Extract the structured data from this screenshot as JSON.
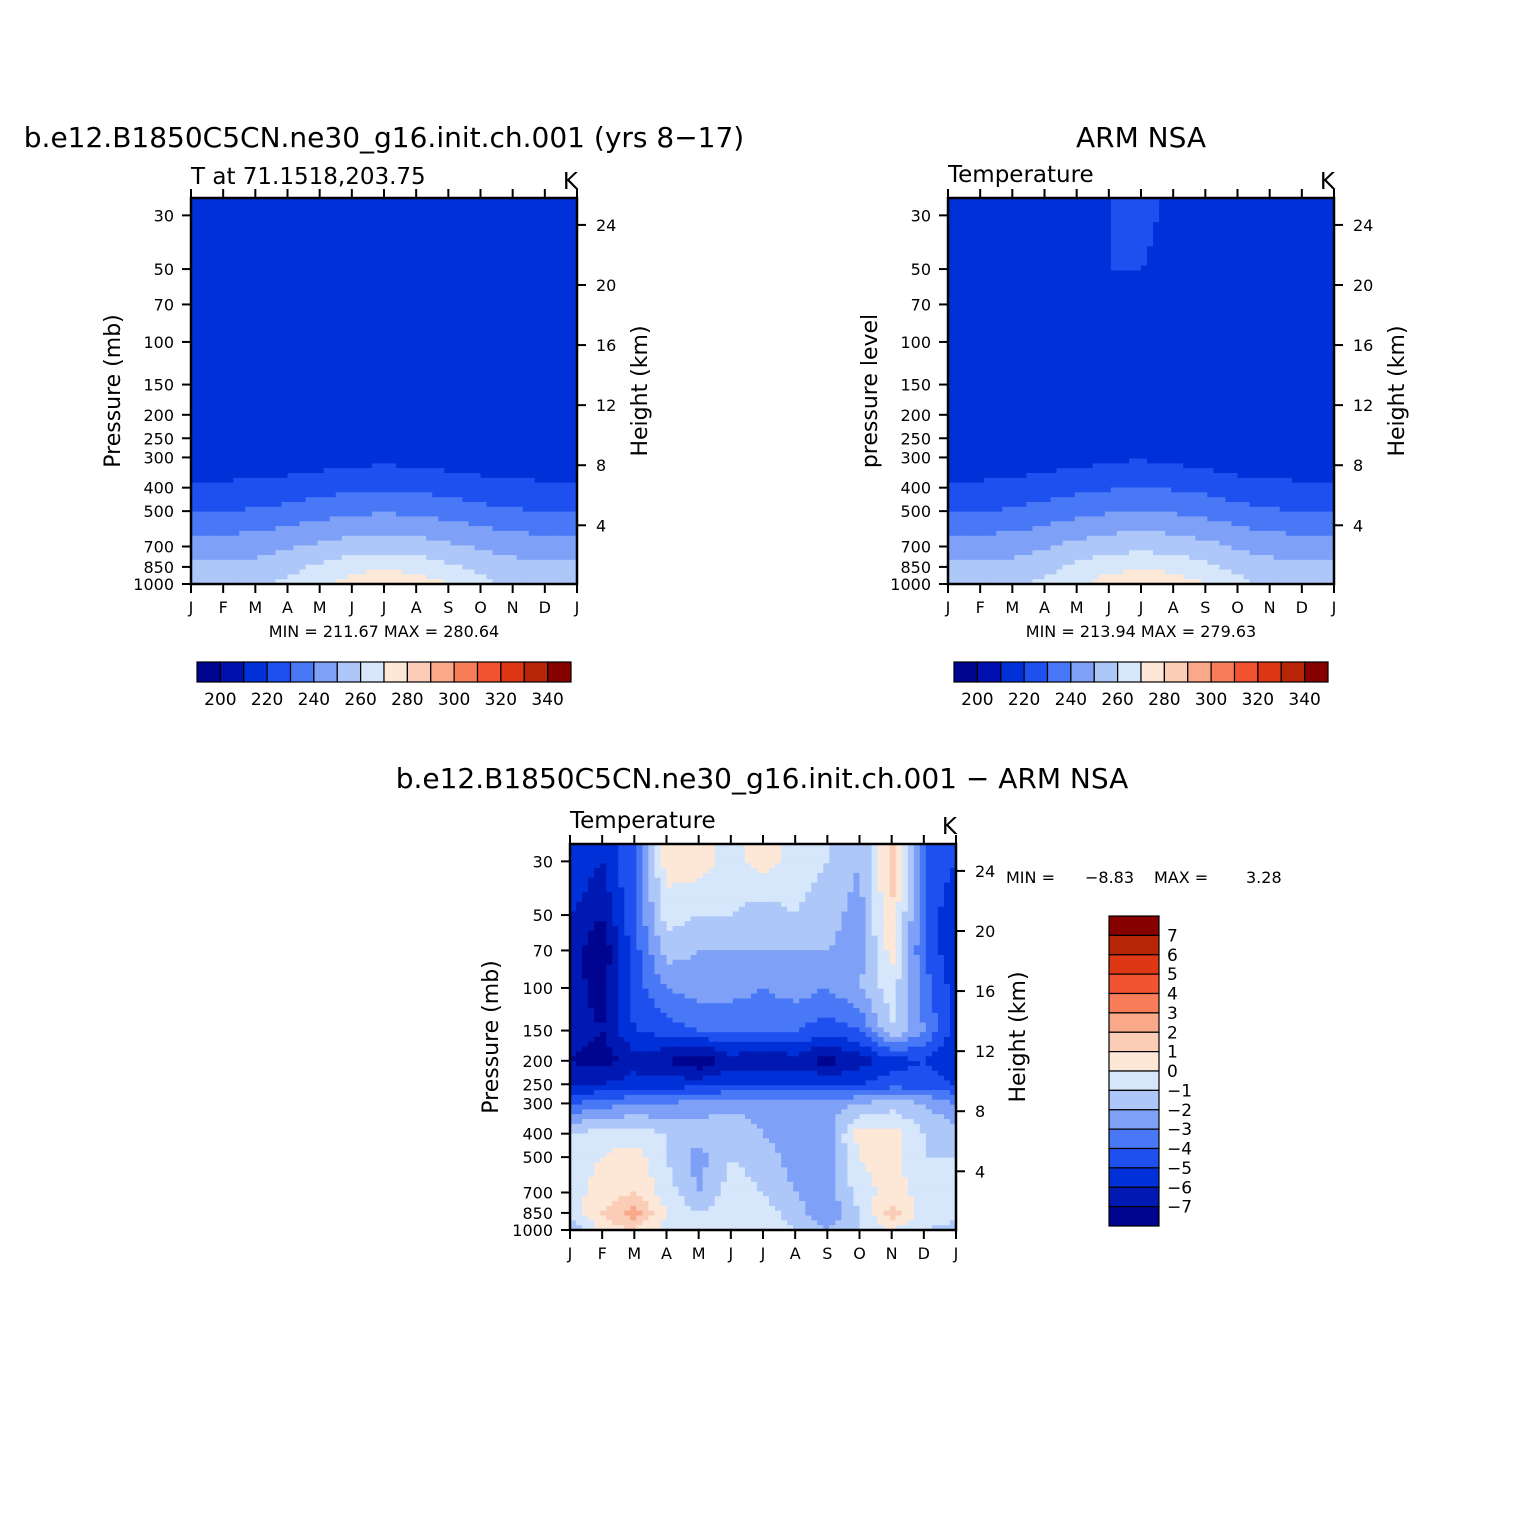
{
  "chart_data": [
    {
      "type": "heatmap",
      "title": "b.e12.B1850C5CN.ne30_g16.init.ch.001 (yrs 8−17)",
      "subtitle_left": "T at 71.1518,203.75",
      "subtitle_right": "K",
      "ylabel": "Pressure (mb)",
      "ylabel_right": "Height (km)",
      "x_ticks": [
        "J",
        "F",
        "M",
        "A",
        "M",
        "J",
        "J",
        "A",
        "S",
        "O",
        "N",
        "D",
        "J"
      ],
      "y_ticks": [
        30,
        50,
        70,
        100,
        150,
        200,
        250,
        300,
        400,
        500,
        700,
        850,
        1000
      ],
      "y_right_ticks": [
        24,
        20,
        16,
        12,
        8,
        4
      ],
      "stats_text": "MIN = 211.67 MAX = 280.64",
      "min": 211.67,
      "max": 280.64,
      "colorbar_labels": [
        "200",
        "220",
        "240",
        "260",
        "280",
        "300",
        "320",
        "340"
      ],
      "colorbar_levels": [
        195,
        200,
        205,
        210,
        215,
        220,
        225,
        230,
        235,
        240,
        245,
        250,
        255,
        260,
        265,
        270,
        275,
        280,
        285,
        290,
        295,
        300,
        305,
        310,
        315,
        320,
        325,
        330,
        335,
        340,
        345,
        350
      ],
      "z_note": "monthly x pressure temperature field, approx values in K",
      "z_rows_pressure": [
        30,
        50,
        70,
        100,
        150,
        200,
        250,
        300,
        400,
        500,
        700,
        850,
        1000
      ],
      "z": [
        [
          215,
          215,
          217,
          218,
          218,
          218,
          219,
          218,
          217,
          216,
          215,
          215,
          215
        ],
        [
          214,
          214,
          216,
          217,
          218,
          218,
          218,
          218,
          217,
          215,
          214,
          214,
          214
        ],
        [
          213,
          214,
          216,
          217,
          218,
          218,
          218,
          218,
          217,
          215,
          214,
          213,
          213
        ],
        [
          213,
          214,
          215,
          217,
          218,
          218,
          218,
          218,
          217,
          215,
          214,
          213,
          213
        ],
        [
          213,
          213,
          214,
          215,
          216,
          217,
          217,
          217,
          216,
          215,
          214,
          213,
          213
        ],
        [
          213,
          213,
          213,
          213,
          214,
          215,
          215,
          215,
          214,
          213,
          213,
          213,
          213
        ],
        [
          213,
          213,
          213,
          213,
          213,
          213,
          214,
          213,
          213,
          213,
          213,
          213,
          213
        ],
        [
          213,
          213,
          213,
          214,
          215,
          216,
          217,
          216,
          215,
          214,
          213,
          213,
          213
        ],
        [
          222,
          222,
          223,
          224,
          226,
          228,
          229,
          228,
          226,
          224,
          223,
          222,
          222
        ],
        [
          230,
          230,
          231,
          233,
          236,
          238,
          239,
          238,
          236,
          233,
          231,
          230,
          230
        ],
        [
          245,
          245,
          246,
          249,
          252,
          255,
          256,
          255,
          252,
          249,
          246,
          245,
          245
        ],
        [
          252,
          252,
          253,
          256,
          262,
          266,
          268,
          266,
          262,
          257,
          254,
          252,
          252
        ],
        [
          256,
          256,
          258,
          262,
          268,
          275,
          280,
          276,
          270,
          263,
          258,
          256,
          256
        ]
      ]
    },
    {
      "type": "heatmap",
      "title": "ARM NSA",
      "subtitle_left": "Temperature",
      "subtitle_right": "K",
      "ylabel": "pressure level",
      "ylabel_right": "Height (km)",
      "x_ticks": [
        "J",
        "F",
        "M",
        "A",
        "M",
        "J",
        "J",
        "A",
        "S",
        "O",
        "N",
        "D",
        "J"
      ],
      "y_ticks": [
        30,
        50,
        70,
        100,
        150,
        200,
        250,
        300,
        400,
        500,
        700,
        850,
        1000
      ],
      "y_right_ticks": [
        24,
        20,
        16,
        12,
        8,
        4
      ],
      "stats_text": "MIN = 213.94 MAX = 279.63",
      "min": 213.94,
      "max": 279.63,
      "colorbar_labels": [
        "200",
        "220",
        "240",
        "260",
        "280",
        "300",
        "320",
        "340"
      ],
      "z_rows_pressure": [
        30,
        50,
        70,
        100,
        150,
        200,
        250,
        300,
        400,
        500,
        700,
        850,
        1000
      ],
      "z": [
        [
          216,
          216,
          217,
          218,
          219,
          220,
          221,
          219,
          218,
          216,
          215,
          216,
          216
        ],
        [
          215,
          216,
          217,
          218,
          219,
          220,
          220,
          219,
          218,
          216,
          215,
          215,
          216
        ],
        [
          215,
          216,
          217,
          218,
          219,
          219,
          220,
          219,
          218,
          216,
          214,
          214,
          215
        ],
        [
          215,
          215,
          217,
          218,
          218,
          219,
          219,
          218,
          217,
          216,
          214,
          213,
          214
        ],
        [
          215,
          215,
          216,
          217,
          217,
          218,
          218,
          218,
          217,
          216,
          214,
          213,
          214
        ],
        [
          213,
          214,
          215,
          216,
          216,
          217,
          217,
          217,
          216,
          214,
          213,
          213,
          213
        ],
        [
          212,
          213,
          214,
          215,
          216,
          216,
          217,
          216,
          215,
          214,
          213,
          213,
          213
        ],
        [
          213,
          213,
          214,
          215,
          216,
          218,
          219,
          217,
          216,
          214,
          213,
          213,
          213
        ],
        [
          222,
          222,
          223,
          225,
          227,
          229,
          230,
          229,
          227,
          224,
          223,
          222,
          222
        ],
        [
          230,
          230,
          231,
          234,
          237,
          239,
          240,
          239,
          237,
          234,
          231,
          230,
          230
        ],
        [
          245,
          245,
          246,
          249,
          253,
          256,
          257,
          256,
          253,
          249,
          246,
          245,
          245
        ],
        [
          252,
          252,
          253,
          256,
          262,
          267,
          268,
          267,
          262,
          257,
          254,
          252,
          252
        ],
        [
          256,
          256,
          258,
          262,
          268,
          275,
          279,
          276,
          270,
          263,
          258,
          256,
          256
        ]
      ]
    },
    {
      "type": "heatmap",
      "title": "b.e12.B1850C5CN.ne30_g16.init.ch.001 − ARM NSA",
      "subtitle_left": "Temperature",
      "subtitle_right": "K",
      "ylabel": "Pressure (mb)",
      "ylabel_right": "Height (km)",
      "x_ticks": [
        "J",
        "F",
        "M",
        "A",
        "M",
        "J",
        "J",
        "A",
        "S",
        "O",
        "N",
        "D",
        "J"
      ],
      "y_ticks": [
        30,
        50,
        70,
        100,
        150,
        200,
        250,
        300,
        400,
        500,
        700,
        850,
        1000
      ],
      "y_right_ticks": [
        24,
        20,
        16,
        12,
        8,
        4
      ],
      "stats_min_label": "MIN =",
      "stats_min_value": "−8.83",
      "stats_max_label": "MAX =",
      "stats_max_value": "3.28",
      "min": -8.83,
      "max": 3.28,
      "colorbar_labels": [
        "7",
        "6",
        "5",
        "4",
        "3",
        "2",
        "1",
        "0",
        "−1",
        "−2",
        "−3",
        "−4",
        "−5",
        "−6",
        "−7"
      ],
      "z_rows_pressure": [
        30,
        50,
        70,
        100,
        150,
        200,
        250,
        300,
        400,
        500,
        700,
        850,
        1000
      ],
      "z": [
        [
          -5.0,
          -6.0,
          -4.0,
          0.5,
          0.5,
          -0.5,
          0.5,
          -0.5,
          -1.0,
          -2.0,
          1.5,
          -4.0,
          -5.0
        ],
        [
          -6.0,
          -7.0,
          -4.0,
          -0.5,
          -1.0,
          -1.0,
          -1.5,
          -1.0,
          -1.5,
          -2.5,
          1.0,
          -4.0,
          -6.0
        ],
        [
          -6.5,
          -7.8,
          -4.5,
          -1.5,
          -2.0,
          -2.0,
          -2.0,
          -2.0,
          -2.0,
          -2.5,
          0.5,
          -4.0,
          -6.0
        ],
        [
          -6.5,
          -7.5,
          -4.5,
          -3.0,
          -2.5,
          -2.5,
          -3.0,
          -2.5,
          -3.0,
          -2.0,
          -0.5,
          -3.5,
          -5.5
        ],
        [
          -6.5,
          -7.0,
          -5.0,
          -4.5,
          -4.0,
          -4.0,
          -4.0,
          -4.0,
          -4.5,
          -4.0,
          -1.0,
          -3.0,
          -5.5
        ],
        [
          -7.0,
          -7.5,
          -6.5,
          -7.0,
          -7.8,
          -6.5,
          -7.0,
          -6.5,
          -7.5,
          -6.5,
          -5.5,
          -5.0,
          -6.0
        ],
        [
          -6.0,
          -6.0,
          -5.5,
          -5.5,
          -5.5,
          -5.0,
          -5.0,
          -5.0,
          -5.0,
          -5.0,
          -4.5,
          -4.5,
          -5.0
        ],
        [
          -4.0,
          -3.5,
          -3.0,
          -3.0,
          -2.5,
          -2.5,
          -2.5,
          -2.5,
          -2.5,
          -2.0,
          -1.5,
          -2.0,
          -3.0
        ],
        [
          -1.0,
          -0.5,
          -0.5,
          -1.0,
          -1.5,
          -1.0,
          -2.0,
          -2.5,
          -2.5,
          0.5,
          0.5,
          -1.0,
          -1.5
        ],
        [
          -0.5,
          0.0,
          0.5,
          -1.0,
          -2.5,
          -1.0,
          -1.5,
          -2.5,
          -2.5,
          0.0,
          0.5,
          -1.0,
          -1.0
        ],
        [
          -0.5,
          0.5,
          1.0,
          -0.5,
          -2.0,
          -0.5,
          -1.0,
          -2.0,
          -2.5,
          -0.5,
          0.5,
          -0.5,
          -0.5
        ],
        [
          -0.5,
          1.0,
          2.5,
          0.0,
          -1.0,
          -0.5,
          -0.5,
          -1.5,
          -3.0,
          -1.0,
          1.5,
          -0.5,
          -0.5
        ],
        [
          -2.0,
          0.5,
          1.0,
          -0.5,
          0.0,
          -0.5,
          0.0,
          -1.0,
          -2.0,
          -1.0,
          0.0,
          -1.0,
          -1.5
        ]
      ]
    }
  ],
  "colors": {
    "abs_palette": [
      "#000590",
      "#0010b0",
      "#0030d8",
      "#1e50f0",
      "#4878f5",
      "#7ea1f7",
      "#adc7f9",
      "#d6e6fb",
      "#fde8d8",
      "#fccdb6",
      "#f9a98a",
      "#f77e58",
      "#f25330",
      "#dd3713",
      "#b82406",
      "#860000"
    ],
    "diff_palette": [
      "#000590",
      "#0019b3",
      "#0030d8",
      "#1e50f0",
      "#4878f5",
      "#7ea1f7",
      "#adc7f9",
      "#d6e6fb",
      "#fde8d8",
      "#fccdb6",
      "#f9a98a",
      "#f77e58",
      "#f25330",
      "#dd3713",
      "#b82406",
      "#860000"
    ]
  }
}
